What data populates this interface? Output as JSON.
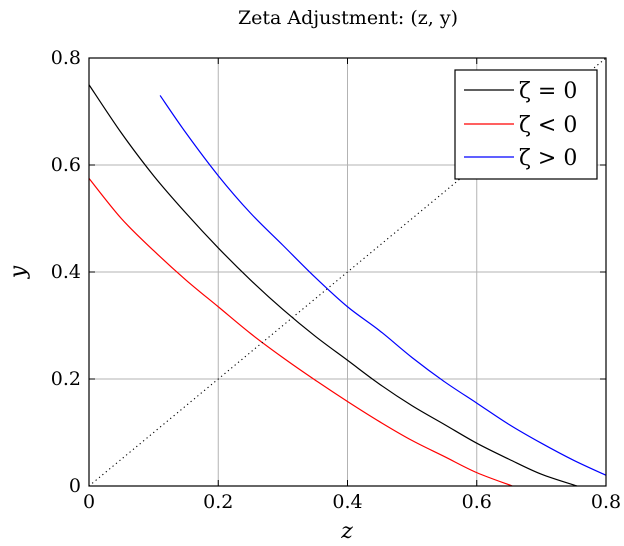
{
  "chart_data": {
    "type": "line",
    "title": "Zeta Adjustment: (z, y)",
    "xlabel": "z",
    "ylabel": "y",
    "xlim": [
      0,
      0.8
    ],
    "ylim": [
      0,
      0.8
    ],
    "xticks": [
      0,
      0.2,
      0.4,
      0.6,
      0.8
    ],
    "yticks": [
      0,
      0.2,
      0.4,
      0.6,
      0.8
    ],
    "xtick_labels": [
      "0",
      "0.2",
      "0.4",
      "0.6",
      "0.8"
    ],
    "ytick_labels": [
      "0",
      "0.2",
      "0.4",
      "0.6",
      "0.8"
    ],
    "grid": true,
    "legend_position": "top-right",
    "series": [
      {
        "name": "ζ = 0",
        "color": "#000000",
        "style": "solid",
        "x": [
          0,
          0.05,
          0.1,
          0.15,
          0.2,
          0.25,
          0.3,
          0.35,
          0.4,
          0.45,
          0.5,
          0.55,
          0.6,
          0.65,
          0.7,
          0.755
        ],
        "y": [
          0.75,
          0.66,
          0.58,
          0.51,
          0.445,
          0.385,
          0.33,
          0.28,
          0.235,
          0.19,
          0.15,
          0.115,
          0.08,
          0.05,
          0.022,
          0
        ]
      },
      {
        "name": "ζ < 0",
        "color": "#ff0000",
        "style": "solid",
        "x": [
          0,
          0.05,
          0.1,
          0.15,
          0.2,
          0.25,
          0.3,
          0.35,
          0.4,
          0.45,
          0.5,
          0.55,
          0.6,
          0.655
        ],
        "y": [
          0.575,
          0.5,
          0.44,
          0.385,
          0.335,
          0.285,
          0.24,
          0.198,
          0.158,
          0.12,
          0.085,
          0.055,
          0.025,
          0
        ]
      },
      {
        "name": "ζ > 0",
        "color": "#0000ff",
        "style": "solid",
        "x": [
          0.11,
          0.15,
          0.2,
          0.25,
          0.3,
          0.35,
          0.4,
          0.45,
          0.5,
          0.55,
          0.6,
          0.65,
          0.7,
          0.75,
          0.8
        ],
        "y": [
          0.73,
          0.66,
          0.58,
          0.51,
          0.45,
          0.39,
          0.335,
          0.29,
          0.24,
          0.195,
          0.155,
          0.115,
          0.08,
          0.048,
          0.02
        ]
      },
      {
        "color": "#000000",
        "style": "dotted",
        "x": [
          0,
          0.8
        ],
        "y": [
          0,
          0.8
        ]
      }
    ],
    "legend": [
      {
        "label": "ζ = 0",
        "color": "#000000"
      },
      {
        "label": "ζ < 0",
        "color": "#ff0000"
      },
      {
        "label": "ζ > 0",
        "color": "#0000ff"
      }
    ]
  }
}
